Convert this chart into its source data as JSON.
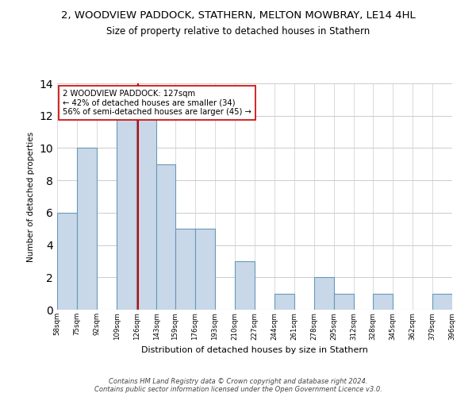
{
  "title": "2, WOODVIEW PADDOCK, STATHERN, MELTON MOWBRAY, LE14 4HL",
  "subtitle": "Size of property relative to detached houses in Stathern",
  "xlabel": "Distribution of detached houses by size in Stathern",
  "ylabel": "Number of detached properties",
  "bar_edges": [
    58,
    75,
    92,
    109,
    126,
    143,
    159,
    176,
    193,
    210,
    227,
    244,
    261,
    278,
    295,
    312,
    328,
    345,
    362,
    379,
    396
  ],
  "bar_heights": [
    6,
    10,
    0,
    12,
    12,
    9,
    5,
    5,
    0,
    3,
    0,
    1,
    0,
    2,
    1,
    0,
    1,
    0,
    0,
    1
  ],
  "bar_color": "#c8d8e8",
  "bar_edge_color": "#6699bb",
  "vline_x": 127,
  "vline_color": "#cc0000",
  "annotation_text": "2 WOODVIEW PADDOCK: 127sqm\n← 42% of detached houses are smaller (34)\n56% of semi-detached houses are larger (45) →",
  "annotation_box_color": "#ffffff",
  "annotation_box_edge_color": "#cc0000",
  "ylim": [
    0,
    14
  ],
  "yticks": [
    0,
    2,
    4,
    6,
    8,
    10,
    12,
    14
  ],
  "tick_labels": [
    "58sqm",
    "75sqm",
    "92sqm",
    "109sqm",
    "126sqm",
    "143sqm",
    "159sqm",
    "176sqm",
    "193sqm",
    "210sqm",
    "227sqm",
    "244sqm",
    "261sqm",
    "278sqm",
    "295sqm",
    "312sqm",
    "328sqm",
    "345sqm",
    "362sqm",
    "379sqm",
    "396sqm"
  ],
  "footer_text": "Contains HM Land Registry data © Crown copyright and database right 2024.\nContains public sector information licensed under the Open Government Licence v3.0.",
  "background_color": "#ffffff",
  "grid_color": "#cccccc"
}
